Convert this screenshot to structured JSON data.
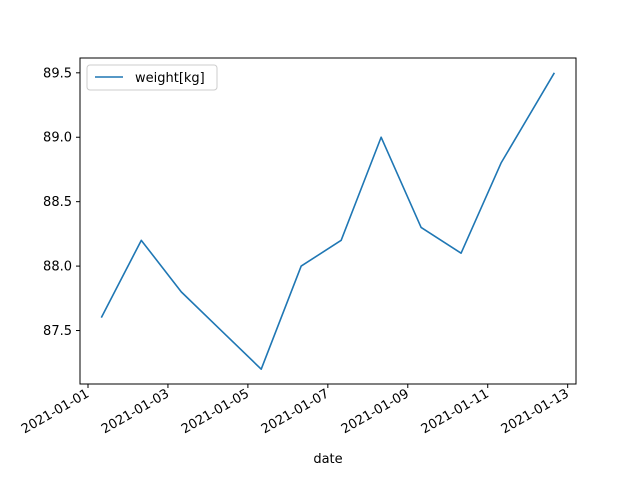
{
  "chart_data": {
    "type": "line",
    "title": "",
    "xlabel": "date",
    "ylabel": "",
    "x": [
      "2021-01-01 08:00",
      "2021-01-02 08:00",
      "2021-01-03 08:00",
      "2021-01-04 08:00",
      "2021-01-05 08:00",
      "2021-01-06 08:00",
      "2021-01-07 08:00",
      "2021-01-08 08:00",
      "2021-01-09 08:00",
      "2021-01-10 08:00",
      "2021-01-11 08:00",
      "2021-01-12 16:00"
    ],
    "series": [
      {
        "name": "weight[kg]",
        "color": "#1f77b4",
        "values": [
          87.6,
          88.2,
          87.8,
          87.5,
          87.2,
          88.0,
          88.2,
          89.0,
          88.3,
          88.1,
          88.8,
          89.5
        ]
      }
    ],
    "xlim": [
      "2020-12-31 19:12",
      "2021-01-13 05:00"
    ],
    "ylim": [
      87.085,
      89.615
    ],
    "x_ticks": [
      "2021-01-01",
      "2021-01-03",
      "2021-01-05",
      "2021-01-07",
      "2021-01-09",
      "2021-01-11",
      "2021-01-13"
    ],
    "y_ticks": [
      "87.5",
      "88.0",
      "88.5",
      "89.0",
      "89.5"
    ],
    "grid": false,
    "legend": "top-left"
  }
}
